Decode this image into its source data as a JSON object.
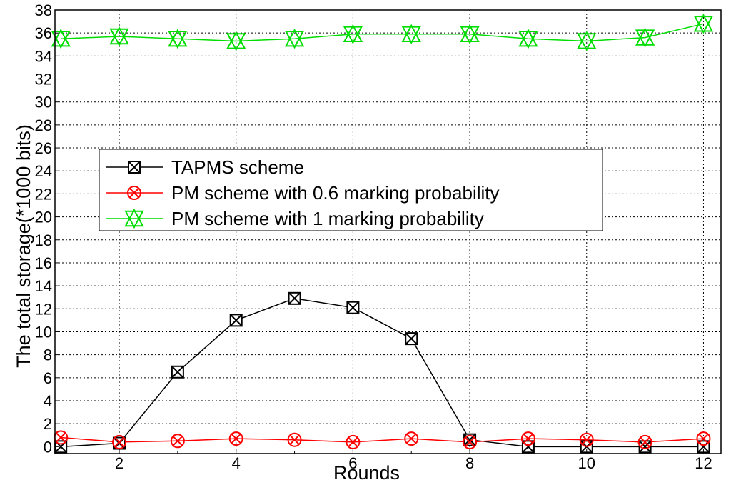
{
  "chart_data": {
    "type": "line",
    "title": "",
    "xlabel": "Rounds",
    "ylabel": "The total storage(*1000 bits)",
    "xlim": [
      0.9,
      12.3
    ],
    "ylim": [
      -0.6,
      38
    ],
    "xticks": [
      2,
      4,
      6,
      8,
      10,
      12
    ],
    "yticks": [
      0,
      2,
      4,
      6,
      8,
      10,
      12,
      14,
      16,
      18,
      20,
      22,
      24,
      26,
      28,
      30,
      32,
      34,
      36,
      38
    ],
    "grid": true,
    "legend_position": "upper-left",
    "x": [
      1,
      2,
      3,
      4,
      5,
      6,
      7,
      8,
      9,
      10,
      11,
      12
    ],
    "series": [
      {
        "name": "TAPMS scheme",
        "color": "#000000",
        "marker": "box-x",
        "values": [
          0,
          0.3,
          6.5,
          11.0,
          12.9,
          12.1,
          9.4,
          0.6,
          0,
          0,
          0,
          0
        ]
      },
      {
        "name": "PM scheme with 0.6 marking probability",
        "color": "#ff0000",
        "marker": "circle-x",
        "values": [
          0.8,
          0.4,
          0.5,
          0.7,
          0.6,
          0.4,
          0.7,
          0.4,
          0.7,
          0.6,
          0.4,
          0.7
        ]
      },
      {
        "name": "PM scheme with 1 marking probability",
        "color": "#00dd00",
        "marker": "triangle-x",
        "values": [
          35.5,
          35.7,
          35.5,
          35.3,
          35.5,
          35.9,
          35.9,
          35.9,
          35.5,
          35.3,
          35.6,
          36.8
        ]
      }
    ]
  }
}
